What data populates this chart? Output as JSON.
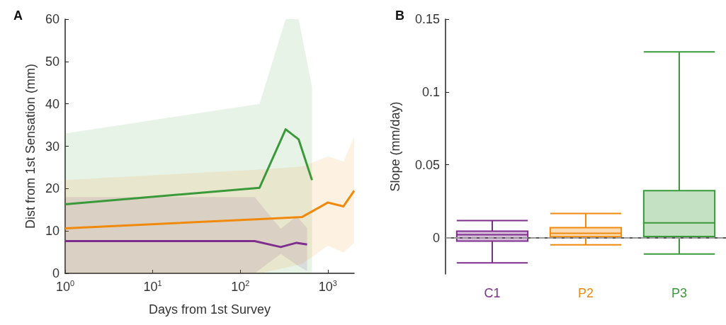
{
  "chart_data": [
    {
      "type": "line",
      "title": "A",
      "xlabel": "Days from 1st Survey",
      "ylabel": "Dist from 1st Sensation (mm)",
      "log": "x",
      "xlim": [
        1,
        2000
      ],
      "xticks": [
        {
          "value": 1,
          "label": "10$^{0}$"
        },
        {
          "value": 10,
          "label": "10$^{1}$"
        },
        {
          "value": 100,
          "label": "10$^{2}$"
        },
        {
          "value": 1000,
          "label": "10$^{3}$"
        }
      ],
      "ylim": [
        0,
        60
      ],
      "yticks": [
        0,
        10,
        20,
        30,
        40,
        50,
        60
      ],
      "grid": false,
      "marker": "none",
      "line_style": "solid",
      "series": [
        {
          "color": "#3a9a3a",
          "x": [
            1,
            166,
            330,
            465,
            660
          ],
          "values": [
            16.3,
            20.2,
            34,
            31.6,
            22
          ],
          "lower": [
            0,
            0,
            0,
            0,
            0
          ],
          "upper": [
            33,
            40,
            60,
            60,
            44
          ]
        },
        {
          "color": "#f08a0c",
          "x": [
            1,
            166,
            510,
            1000,
            1510,
            2000
          ],
          "values": [
            10.6,
            12.8,
            13.3,
            16.7,
            15.8,
            19.5
          ],
          "lower": [
            0,
            0,
            2.2,
            6.5,
            4.9,
            7.2
          ],
          "upper": [
            22,
            24.5,
            25.2,
            27.6,
            26.4,
            32.2
          ]
        },
        {
          "color": "#7e2f8e",
          "x": [
            1,
            146,
            290,
            440,
            580
          ],
          "values": [
            7.6,
            7.6,
            6.2,
            7.2,
            6.8
          ],
          "lower": [
            0,
            0,
            4.6,
            2,
            0.5
          ],
          "upper": [
            18,
            18,
            10.5,
            13.5,
            10.7
          ]
        }
      ]
    },
    {
      "type": "box",
      "title": "B",
      "ylabel": "Slope (mm/day)",
      "categories": [
        "C1",
        "P2",
        "P3"
      ],
      "colors": [
        "#7e2f8e",
        "#f08a0c",
        "#3a9a3a"
      ],
      "ylim": [
        -0.025,
        0.15
      ],
      "yticks": [
        0,
        0.05,
        0.1,
        0.15
      ],
      "grid": false,
      "boxes": [
        {
          "low": -0.0174,
          "q1": -0.0024,
          "median": 0.002,
          "q3": 0.0044,
          "high": 0.0117
        },
        {
          "low": -0.0049,
          "q1": 0.0007,
          "median": 0.0029,
          "q3": 0.0068,
          "high": 0.0166
        },
        {
          "low": -0.0113,
          "q1": 0.0008,
          "median": 0.0101,
          "q3": 0.0323,
          "high": 0.1275
        }
      ],
      "ref_lines": [
        {
          "axis": "y",
          "value": 0,
          "color": "#999999",
          "line_style": "dashed"
        }
      ]
    }
  ]
}
